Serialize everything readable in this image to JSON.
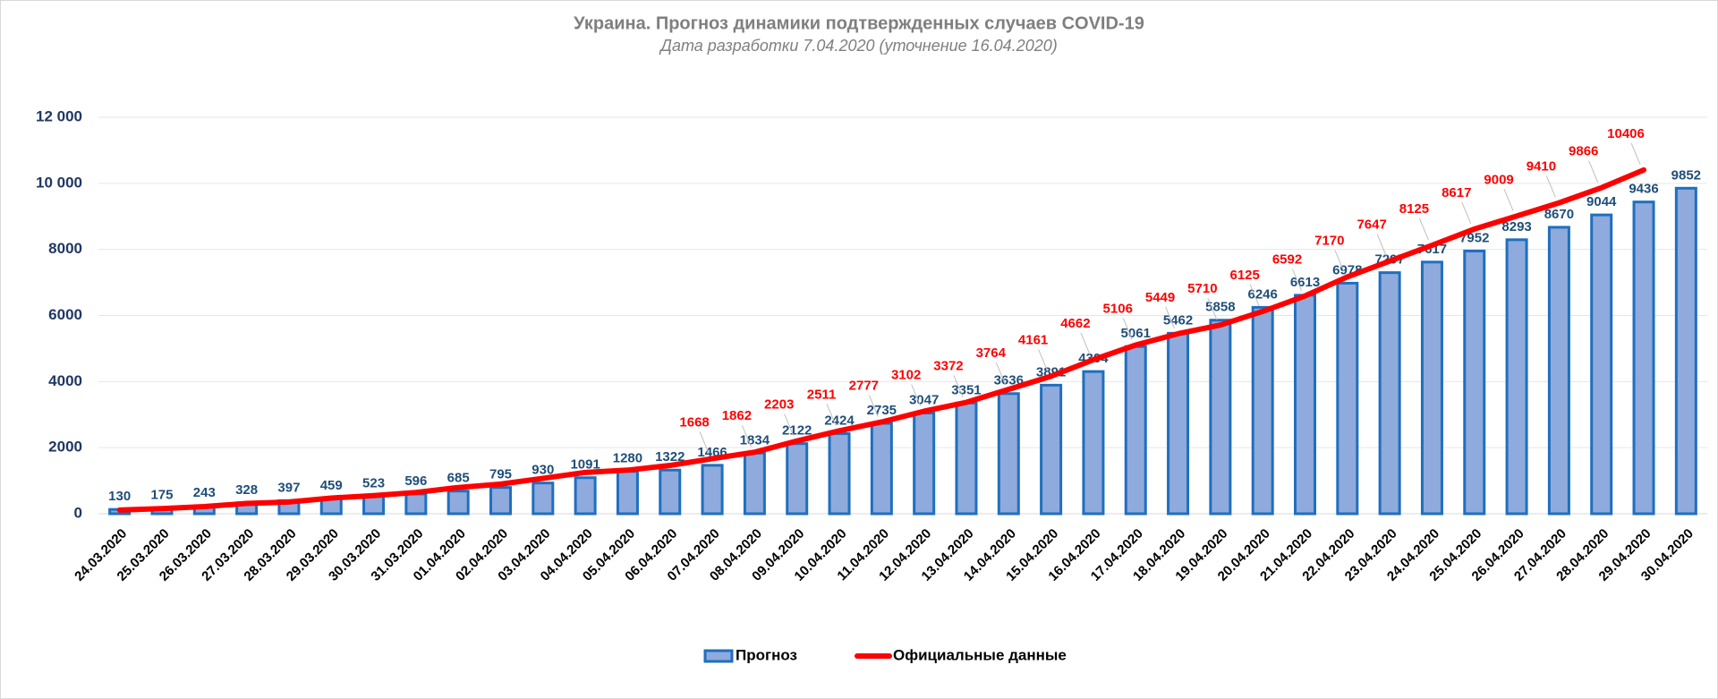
{
  "chart_data": {
    "type": "bar_line",
    "title": "Украина. Прогноз динамики подтвержденных случаев COVID-19",
    "subtitle": "Дата разработки 7.04.2020 (уточнение 16.04.2020)",
    "categories": [
      "24.03.2020",
      "25.03.2020",
      "26.03.2020",
      "27.03.2020",
      "28.03.2020",
      "29.03.2020",
      "30.03.2020",
      "31.03.2020",
      "01.04.2020",
      "02.04.2020",
      "03.04.2020",
      "04.04.2020",
      "05.04.2020",
      "06.04.2020",
      "07.04.2020",
      "08.04.2020",
      "09.04.2020",
      "10.04.2020",
      "11.04.2020",
      "12.04.2020",
      "13.04.2020",
      "14.04.2020",
      "15.04.2020",
      "16.04.2020",
      "17.04.2020",
      "18.04.2020",
      "19.04.2020",
      "20.04.2020",
      "21.04.2020",
      "22.04.2020",
      "23.04.2020",
      "24.04.2020",
      "25.04.2020",
      "26.04.2020",
      "27.04.2020",
      "28.04.2020",
      "29.04.2020",
      "30.04.2020"
    ],
    "series": [
      {
        "name": "Прогноз",
        "type": "bar",
        "color": "#8faadc",
        "edge_color": "#1f6fbf",
        "values": [
          130,
          175,
          243,
          328,
          397,
          459,
          523,
          596,
          685,
          795,
          930,
          1091,
          1280,
          1322,
          1466,
          1834,
          2122,
          2424,
          2735,
          3047,
          3351,
          3636,
          3891,
          4304,
          5061,
          5462,
          5858,
          6246,
          6613,
          6978,
          7297,
          7617,
          7952,
          8293,
          8670,
          9044,
          9436,
          9852
        ]
      },
      {
        "name": "Официальные данные",
        "type": "line",
        "color": "#ff0000",
        "values": [
          113,
          156,
          218,
          311,
          356,
          475,
          548,
          645,
          794,
          897,
          1072,
          1251,
          1319,
          1462,
          1668,
          1862,
          2203,
          2511,
          2777,
          3102,
          3372,
          3764,
          4161,
          4662,
          5106,
          5449,
          5710,
          6125,
          6592,
          7170,
          7647,
          8125,
          8617,
          9009,
          9410,
          9866,
          10406,
          null
        ],
        "value_labels": [
          null,
          null,
          null,
          null,
          null,
          null,
          null,
          null,
          null,
          null,
          null,
          null,
          null,
          null,
          "1668",
          "1862",
          "2203",
          "2511",
          "2777",
          "3102",
          "3372",
          "3764",
          "4161",
          "4662",
          "5106",
          "5449",
          "5710",
          "6125",
          "6592",
          "7170",
          "7647",
          "8125",
          "8617",
          "9009",
          "9410",
          "9866",
          "10406",
          null
        ]
      }
    ],
    "ylim": [
      0,
      12000
    ],
    "yticks": [
      0,
      2000,
      4000,
      6000,
      8000,
      {
        "value": 10000,
        "label": "10 000"
      },
      {
        "value": 12000,
        "label": "12 000"
      }
    ],
    "grid": true
  }
}
